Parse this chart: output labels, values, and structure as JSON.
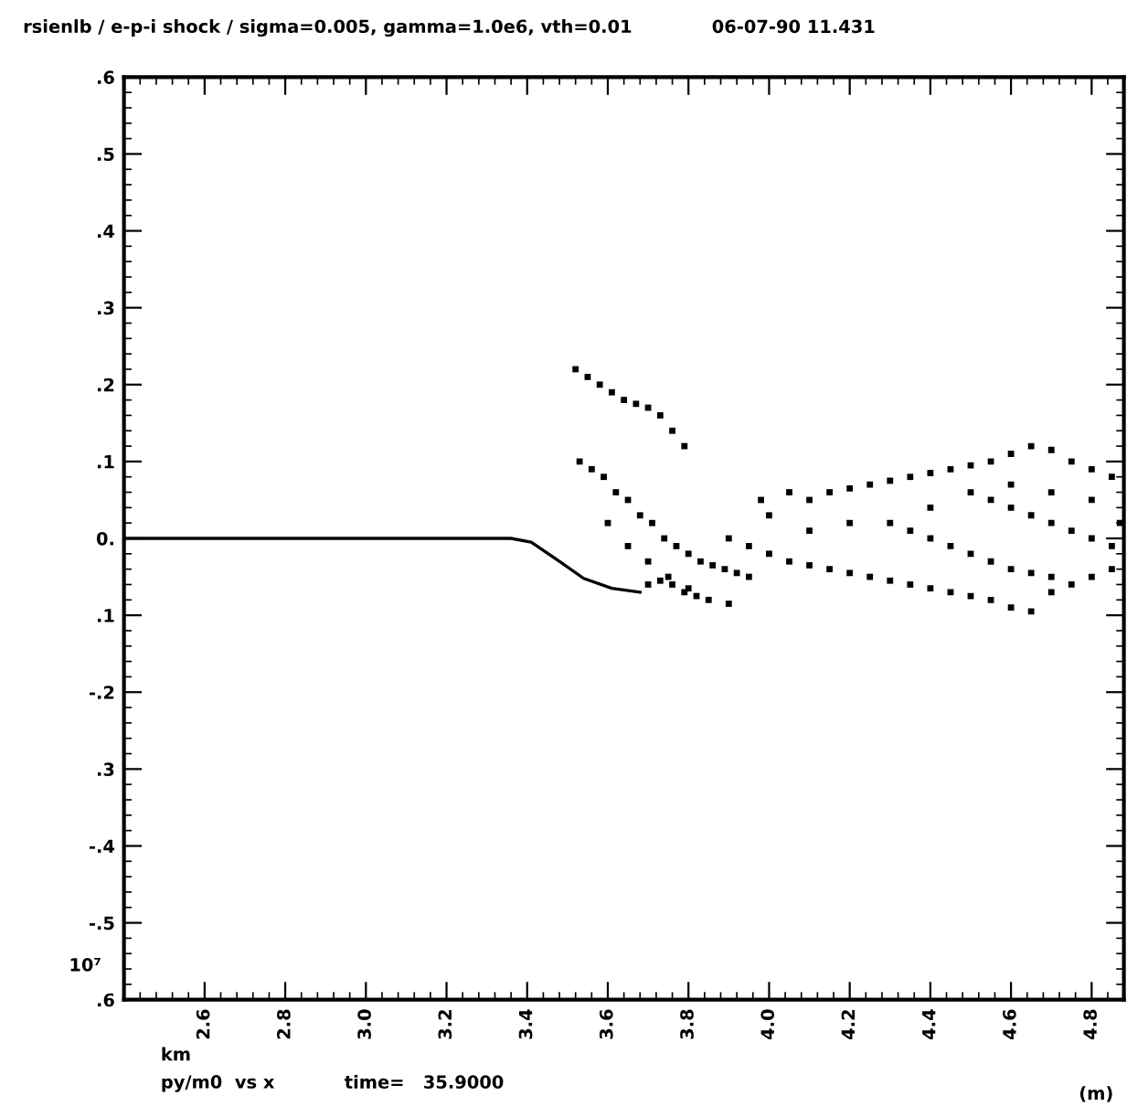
{
  "chart_data": {
    "type": "scatter",
    "title": "rsienlb / e-p-i shock / sigma=0.005, gamma=1.0e6, vth=0.01",
    "annotations": [
      "06-07-90 11.431",
      "10⁷",
      "km",
      "py/m0  vs x",
      "time=   35.9000",
      "(m)"
    ],
    "xlim": [
      2.4,
      4.88
    ],
    "ylim": [
      -0.6,
      0.6
    ],
    "xticks": [
      {
        "value": 2.6,
        "label": "2.6"
      },
      {
        "value": 2.8,
        "label": "2.8"
      },
      {
        "value": 3.0,
        "label": "3.0"
      },
      {
        "value": 3.2,
        "label": "3.2"
      },
      {
        "value": 3.4,
        "label": "3.4"
      },
      {
        "value": 3.6,
        "label": "3.6"
      },
      {
        "value": 3.8,
        "label": "3.8"
      },
      {
        "value": 4.0,
        "label": "4.0"
      },
      {
        "value": 4.2,
        "label": "4.2"
      },
      {
        "value": 4.4,
        "label": "4.4"
      },
      {
        "value": 4.6,
        "label": "4.6"
      },
      {
        "value": 4.8,
        "label": "4.8"
      }
    ],
    "yticks": [
      {
        "value": -0.6,
        "label": ".6"
      },
      {
        "value": -0.5,
        "label": "-.5"
      },
      {
        "value": -0.4,
        "label": "-.4"
      },
      {
        "value": -0.3,
        "label": ".3"
      },
      {
        "value": -0.2,
        "label": "-.2"
      },
      {
        "value": -0.1,
        "label": ".1"
      },
      {
        "value": 0,
        "label": "0."
      },
      {
        "value": 0.1,
        "label": ".1"
      },
      {
        "value": 0.2,
        "label": ".2"
      },
      {
        "value": 0.3,
        "label": ".3"
      },
      {
        "value": 0.4,
        "label": ".4"
      },
      {
        "value": 0.5,
        "label": ".5"
      },
      {
        "value": 0.6,
        "label": ".6"
      }
    ],
    "grid": false,
    "series": [
      {
        "type": "line",
        "color": "#000000",
        "x": [
          2.4,
          3.36,
          3.41,
          3.48,
          3.54,
          3.61,
          3.68
        ],
        "values": [
          0,
          0,
          -0.005,
          -0.03,
          -0.052,
          -0.065,
          -0.07
        ]
      },
      {
        "marker": "square",
        "color": "#000000",
        "x": [
          3.52,
          3.55,
          3.58,
          3.61,
          3.64,
          3.67,
          3.7,
          3.73,
          3.76,
          3.79,
          3.53,
          3.56,
          3.59,
          3.62,
          3.65,
          3.68,
          3.71,
          3.74,
          3.77,
          3.8,
          3.83,
          3.86,
          3.89,
          3.92,
          3.95,
          3.6,
          3.65,
          3.7,
          3.75,
          3.8,
          3.85,
          3.9,
          3.7,
          3.73,
          3.76,
          3.79,
          3.82,
          3.9,
          3.95,
          4.0,
          4.05,
          4.1,
          4.15,
          4.2,
          4.25,
          4.3,
          4.35,
          4.4,
          4.45,
          4.5,
          4.55,
          4.6,
          4.65,
          4.05,
          4.1,
          4.15,
          4.2,
          4.25,
          4.3,
          4.35,
          4.4,
          4.45,
          4.5,
          4.55,
          4.6,
          4.65,
          4.7,
          4.75,
          4.8,
          4.85,
          4.3,
          4.35,
          4.4,
          4.45,
          4.5,
          4.55,
          4.6,
          4.65,
          4.7,
          4.55,
          4.6,
          4.65,
          4.7,
          4.75,
          4.8,
          4.85,
          4.87,
          4.8,
          4.7,
          4.6,
          4.5,
          4.4,
          4.2,
          4.1,
          4.0,
          3.98,
          4.7,
          4.75,
          4.8,
          4.85
        ],
        "values": [
          0.22,
          0.21,
          0.2,
          0.19,
          0.18,
          0.175,
          0.17,
          0.16,
          0.14,
          0.12,
          0.1,
          0.09,
          0.08,
          0.06,
          0.05,
          0.03,
          0.02,
          0.0,
          -0.01,
          -0.02,
          -0.03,
          -0.035,
          -0.04,
          -0.045,
          -0.05,
          0.02,
          -0.01,
          -0.03,
          -0.05,
          -0.065,
          -0.08,
          -0.085,
          -0.06,
          -0.055,
          -0.06,
          -0.07,
          -0.075,
          0.0,
          -0.01,
          -0.02,
          -0.03,
          -0.035,
          -0.04,
          -0.045,
          -0.05,
          -0.055,
          -0.06,
          -0.065,
          -0.07,
          -0.075,
          -0.08,
          -0.09,
          -0.095,
          0.06,
          0.05,
          0.06,
          0.065,
          0.07,
          0.075,
          0.08,
          0.085,
          0.09,
          0.095,
          0.1,
          0.11,
          0.12,
          0.115,
          0.1,
          0.09,
          0.08,
          0.02,
          0.01,
          0.0,
          -0.01,
          -0.02,
          -0.03,
          -0.04,
          -0.045,
          -0.05,
          0.05,
          0.04,
          0.03,
          0.02,
          0.01,
          0.0,
          -0.01,
          0.02,
          0.05,
          0.06,
          0.07,
          0.06,
          0.04,
          0.02,
          0.01,
          0.03,
          0.05,
          -0.07,
          -0.06,
          -0.05,
          -0.04
        ]
      }
    ]
  }
}
